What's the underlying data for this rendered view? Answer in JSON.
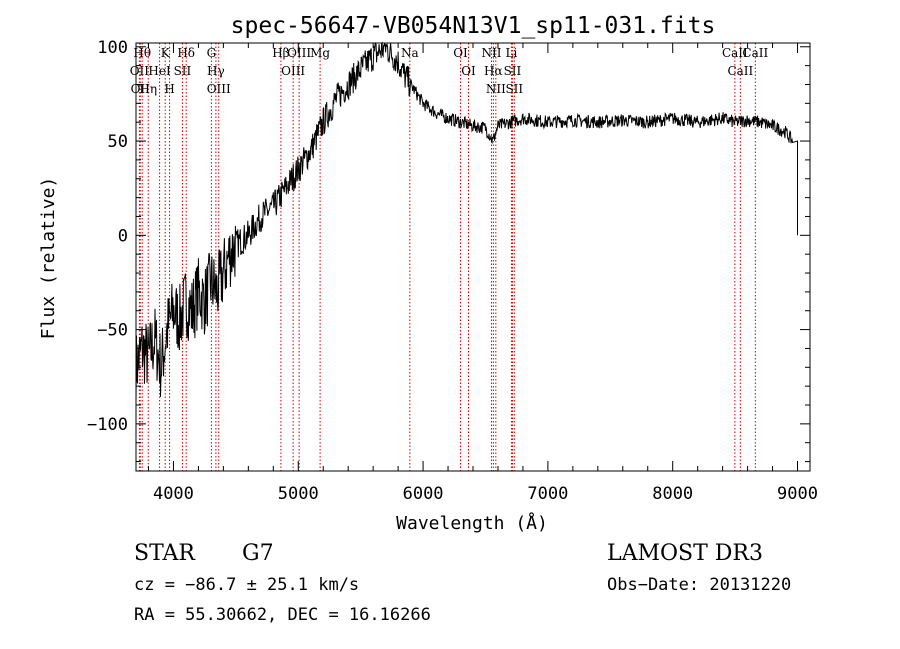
{
  "chart_data": {
    "type": "line",
    "title": "spec-56647-VB054N13V1_sp11-031.fits",
    "xlabel": "Wavelength (Å)",
    "ylabel": "Flux (relative)",
    "xlim": [
      3700,
      9100
    ],
    "ylim": [
      -125,
      102
    ],
    "xticks": [
      4000,
      5000,
      6000,
      7000,
      8000,
      9000
    ],
    "yticks": [
      -100,
      -50,
      0,
      50,
      100
    ],
    "xtick_labels": [
      "4000",
      "5000",
      "6000",
      "7000",
      "8000",
      "9000"
    ],
    "ytick_labels": [
      "−100",
      "−50",
      "0",
      "50",
      "100"
    ],
    "series": [
      {
        "name": "flux",
        "x": [
          3700,
          3750,
          3800,
          3850,
          3900,
          3950,
          4000,
          4050,
          4100,
          4150,
          4200,
          4250,
          4300,
          4350,
          4400,
          4450,
          4500,
          4600,
          4700,
          4800,
          4900,
          5000,
          5100,
          5200,
          5300,
          5400,
          5500,
          5600,
          5700,
          5800,
          5850,
          5900,
          5950,
          6000,
          6100,
          6200,
          6300,
          6400,
          6500,
          6560,
          6600,
          6700,
          6800,
          7000,
          7200,
          7400,
          7600,
          7800,
          8000,
          8200,
          8400,
          8500,
          8600,
          8700,
          8800,
          8900,
          8960,
          9000
        ],
        "y": [
          -70,
          -60,
          -65,
          -55,
          -70,
          -50,
          -40,
          -45,
          -35,
          -40,
          -30,
          -35,
          -25,
          -30,
          -20,
          -10,
          -5,
          0,
          10,
          15,
          25,
          35,
          45,
          60,
          72,
          80,
          88,
          95,
          100,
          92,
          85,
          80,
          75,
          70,
          65,
          62,
          60,
          58,
          57,
          50,
          58,
          60,
          62,
          60,
          61,
          60,
          61,
          60,
          62,
          60,
          62,
          60,
          61,
          60,
          58,
          55,
          50,
          0
        ]
      }
    ],
    "lines": [
      {
        "wavelength": 3750,
        "label": "Hθ"
      },
      {
        "wavelength": 3727,
        "label": "OII"
      },
      {
        "wavelength": 3734,
        "label": "OII"
      },
      {
        "wavelength": 3798,
        "label": "Hη"
      },
      {
        "wavelength": 3889,
        "label": "HeI"
      },
      {
        "wavelength": 3934,
        "label": "K"
      },
      {
        "wavelength": 3969,
        "label": "H"
      },
      {
        "wavelength": 4072,
        "label": "SII"
      },
      {
        "wavelength": 4102,
        "label": "Hδ"
      },
      {
        "wavelength": 4304,
        "label": "G"
      },
      {
        "wavelength": 4340,
        "label": "Hγ"
      },
      {
        "wavelength": 4363,
        "label": "OIII"
      },
      {
        "wavelength": 4861,
        "label": "Hβ"
      },
      {
        "wavelength": 4959,
        "label": "OIII"
      },
      {
        "wavelength": 5007,
        "label": "OIII"
      },
      {
        "wavelength": 5175,
        "label": "Mg"
      },
      {
        "wavelength": 5894,
        "label": "Na"
      },
      {
        "wavelength": 6300,
        "label": "OI"
      },
      {
        "wavelength": 6364,
        "label": "OI"
      },
      {
        "wavelength": 6548,
        "label": "NII"
      },
      {
        "wavelength": 6563,
        "label": "Hα"
      },
      {
        "wavelength": 6583,
        "label": "NII"
      },
      {
        "wavelength": 6708,
        "label": "Li"
      },
      {
        "wavelength": 6716,
        "label": "SII"
      },
      {
        "wavelength": 6731,
        "label": "SII"
      },
      {
        "wavelength": 8498,
        "label": "CaII"
      },
      {
        "wavelength": 8542,
        "label": "CaII"
      },
      {
        "wavelength": 8662,
        "label": "CaII"
      }
    ]
  },
  "info": {
    "object_type": "STAR",
    "subclass": "G7",
    "cz": "cz = −86.7 ± 25.1 km/s",
    "coords": "RA =  55.30662, DEC =  16.16266",
    "survey": "LAMOST DR3",
    "obs_date": "Obs−Date: 20131220"
  },
  "colors": {
    "axis": "#000000",
    "spectrum": "#000000",
    "line_marker": "#d40000"
  }
}
